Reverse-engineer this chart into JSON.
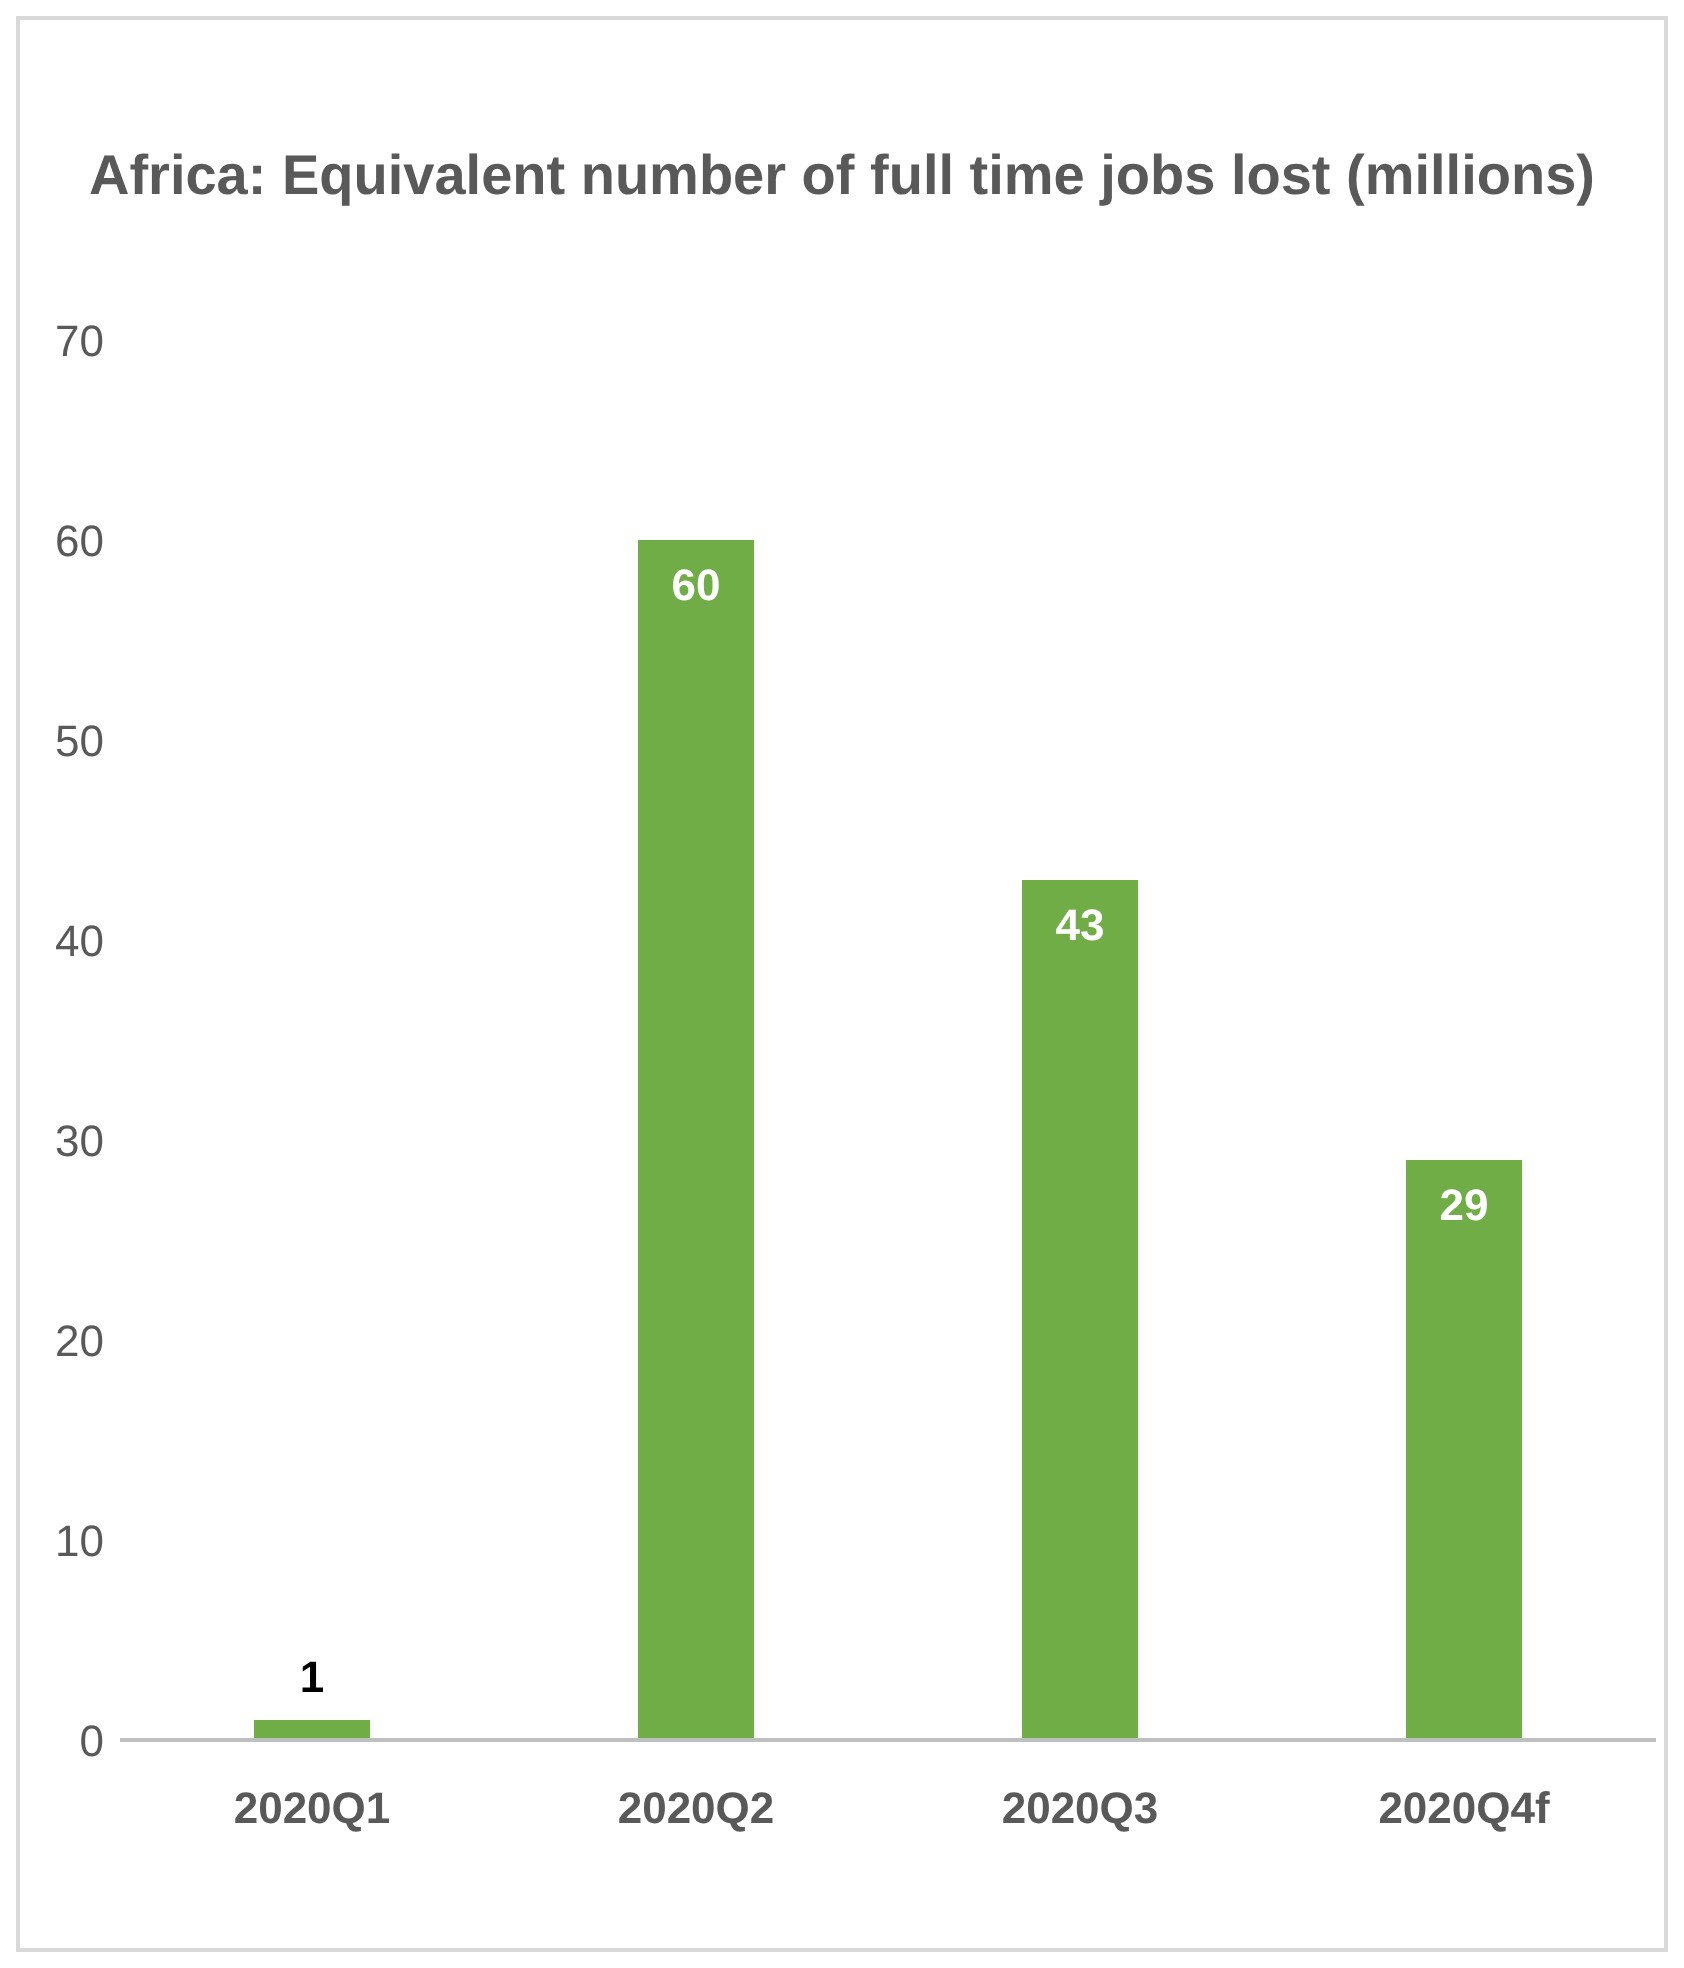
{
  "chart_data": {
    "type": "bar",
    "title": "Africa: Equivalent number of full time jobs lost (millions)",
    "categories": [
      "2020Q1",
      "2020Q2",
      "2020Q3",
      "2020Q4f"
    ],
    "values": [
      1,
      60,
      43,
      29
    ],
    "color": "#70ad47",
    "ylim": [
      0,
      70
    ],
    "yticks": [
      0,
      10,
      20,
      30,
      40,
      50,
      60,
      70
    ],
    "grid": false,
    "data_labels": true
  }
}
